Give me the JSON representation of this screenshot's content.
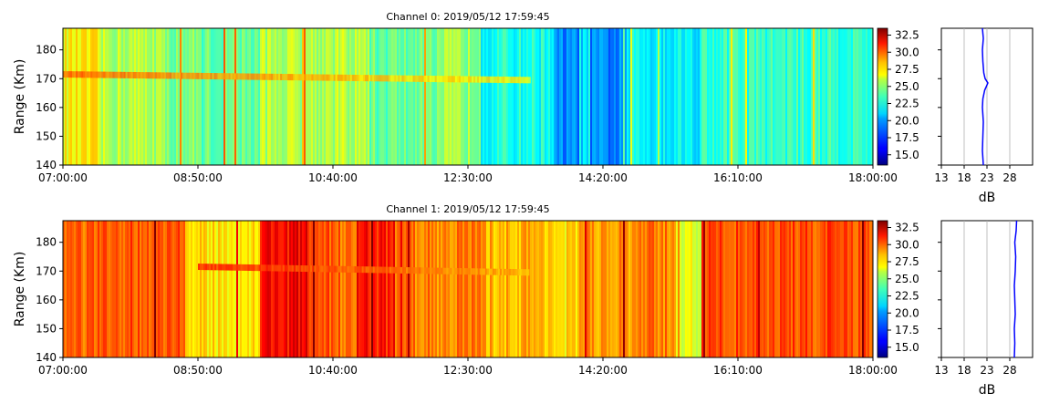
{
  "chart_data": [
    {
      "type": "heatmap",
      "title": "Channel 0: 2019/05/12 17:59:45",
      "ylabel": "Range (Km)",
      "xlabel": "",
      "x_ticks": [
        "07:00:00",
        "08:50:00",
        "10:40:00",
        "12:30:00",
        "14:20:00",
        "16:10:00",
        "18:00:00"
      ],
      "x_range": [
        "07:00:00",
        "18:00:00"
      ],
      "y_ticks": [
        140,
        150,
        160,
        170,
        180
      ],
      "ylim": [
        140,
        187.5
      ],
      "colorbar": {
        "ticks": [
          "15.0",
          "17.5",
          "20.0",
          "22.5",
          "25.0",
          "27.5",
          "30.0",
          "32.5"
        ],
        "range": [
          13.5,
          33.5
        ],
        "colormap": "jet"
      },
      "echo_band": {
        "range_km": 170,
        "start_time": "07:00:00",
        "end_time": "13:20:00",
        "peak_db": 29
      },
      "background_segments": [
        {
          "start": "07:00:00",
          "end": "07:30:00",
          "db": 26
        },
        {
          "start": "07:30:00",
          "end": "08:20:00",
          "db": 24.5
        },
        {
          "start": "08:20:00",
          "end": "08:50:00",
          "db": 23.5
        },
        {
          "start": "08:50:00",
          "end": "09:40:00",
          "db": 23
        },
        {
          "start": "09:40:00",
          "end": "11:10:00",
          "db": 24.5
        },
        {
          "start": "11:10:00",
          "end": "12:10:00",
          "db": 23
        },
        {
          "start": "12:10:00",
          "end": "12:40:00",
          "db": 24
        },
        {
          "start": "12:40:00",
          "end": "13:40:00",
          "db": 21.5
        },
        {
          "start": "13:40:00",
          "end": "14:00:00",
          "db": 18.5
        },
        {
          "start": "14:00:00",
          "end": "14:10:00",
          "db": 20.5
        },
        {
          "start": "14:10:00",
          "end": "14:40:00",
          "db": 18.5
        },
        {
          "start": "14:40:00",
          "end": "15:40:00",
          "db": 21
        },
        {
          "start": "15:40:00",
          "end": "18:00:00",
          "db": 22
        }
      ],
      "side_profile": {
        "xlabel": "dB",
        "x_ticks": [
          13,
          18,
          23,
          28
        ],
        "xlim": [
          13,
          33
        ],
        "line_color": "#0000ff",
        "points": [
          [
            22.2,
            140
          ],
          [
            22.0,
            145
          ],
          [
            22.1,
            150
          ],
          [
            22.2,
            155
          ],
          [
            22.0,
            160
          ],
          [
            22.1,
            163
          ],
          [
            22.5,
            166
          ],
          [
            23.2,
            168.5
          ],
          [
            22.6,
            170
          ],
          [
            22.3,
            172
          ],
          [
            22.1,
            176
          ],
          [
            22.0,
            180
          ],
          [
            22.2,
            184
          ],
          [
            22.0,
            187.5
          ]
        ]
      }
    },
    {
      "type": "heatmap",
      "title": "Channel 1: 2019/05/12 17:59:45",
      "ylabel": "Range (Km)",
      "xlabel": "",
      "x_ticks": [
        "07:00:00",
        "08:50:00",
        "10:40:00",
        "12:30:00",
        "14:20:00",
        "16:10:00",
        "18:00:00"
      ],
      "x_range": [
        "07:00:00",
        "18:00:00"
      ],
      "y_ticks": [
        140,
        150,
        160,
        170,
        180
      ],
      "ylim": [
        140,
        187.5
      ],
      "colorbar": {
        "ticks": [
          "15.0",
          "17.5",
          "20.0",
          "22.5",
          "25.0",
          "27.5",
          "30.0",
          "32.5"
        ],
        "range": [
          13.5,
          33.5
        ],
        "colormap": "jet"
      },
      "echo_band": {
        "range_km": 170,
        "start_time": "08:50:00",
        "end_time": "13:20:00",
        "peak_db": 30.5
      },
      "background_segments": [
        {
          "start": "07:00:00",
          "end": "07:50:00",
          "db": 29
        },
        {
          "start": "07:50:00",
          "end": "08:40:00",
          "db": 29.5
        },
        {
          "start": "08:40:00",
          "end": "09:40:00",
          "db": 26.5
        },
        {
          "start": "09:40:00",
          "end": "10:20:00",
          "db": 31
        },
        {
          "start": "10:20:00",
          "end": "10:40:00",
          "db": 29.5
        },
        {
          "start": "10:40:00",
          "end": "11:00:00",
          "db": 29
        },
        {
          "start": "11:00:00",
          "end": "11:30:00",
          "db": 30.5
        },
        {
          "start": "11:30:00",
          "end": "12:40:00",
          "db": 28.5
        },
        {
          "start": "12:40:00",
          "end": "13:40:00",
          "db": 27.5
        },
        {
          "start": "13:40:00",
          "end": "14:00:00",
          "db": 26.5
        },
        {
          "start": "14:00:00",
          "end": "14:50:00",
          "db": 28
        },
        {
          "start": "14:50:00",
          "end": "15:20:00",
          "db": 28.5
        },
        {
          "start": "15:20:00",
          "end": "15:40:00",
          "db": 25.5
        },
        {
          "start": "15:40:00",
          "end": "18:00:00",
          "db": 29.5
        }
      ],
      "side_profile": {
        "xlabel": "dB",
        "x_ticks": [
          13,
          18,
          23,
          28
        ],
        "xlim": [
          13,
          33
        ],
        "line_color": "#0000ff",
        "points": [
          [
            29.0,
            140
          ],
          [
            29.1,
            145
          ],
          [
            29.0,
            150
          ],
          [
            29.2,
            155
          ],
          [
            29.1,
            160
          ],
          [
            29.0,
            165
          ],
          [
            29.2,
            170
          ],
          [
            29.3,
            175
          ],
          [
            29.1,
            180
          ],
          [
            29.4,
            184
          ],
          [
            29.5,
            187.5
          ]
        ]
      }
    }
  ]
}
